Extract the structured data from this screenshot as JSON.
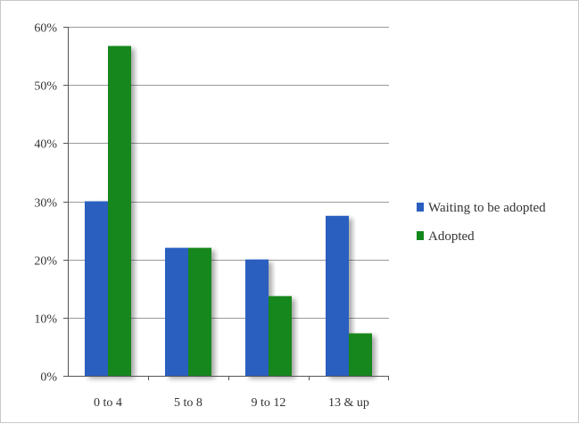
{
  "chart_data": {
    "type": "bar",
    "categories": [
      "0 to 4",
      "5 to 8",
      "9 to 12",
      "13 & up"
    ],
    "series": [
      {
        "name": "Waiting to be adopted",
        "values": [
          30,
          22,
          20,
          27.5
        ],
        "color": "#2a5fc0"
      },
      {
        "name": "Adopted",
        "values": [
          56.7,
          22,
          13.7,
          7.3
        ],
        "color": "#12871b"
      }
    ],
    "ylim": [
      0,
      60
    ],
    "yticks": [
      0,
      10,
      20,
      30,
      40,
      50,
      60
    ],
    "ytick_labels": [
      "0%",
      "10%",
      "20%",
      "30%",
      "40%",
      "50%",
      "60%"
    ],
    "grid": true,
    "legend_position": "right",
    "title": "",
    "xlabel": "",
    "ylabel": ""
  }
}
